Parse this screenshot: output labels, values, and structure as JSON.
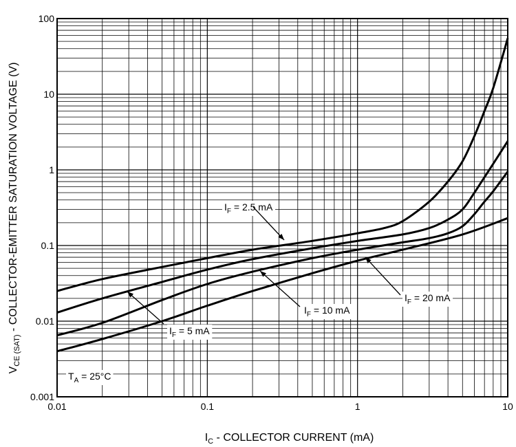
{
  "chart_data": {
    "type": "line",
    "title": "",
    "x_scale": "log",
    "y_scale": "log",
    "xlim": [
      0.01,
      10
    ],
    "ylim": [
      0.001,
      100
    ],
    "grid": true,
    "x_ticks": [
      "0.01",
      "0.1",
      "1",
      "10"
    ],
    "y_ticks": [
      "0.001",
      "0.01",
      "0.1",
      "1",
      "10",
      "100"
    ],
    "xlabel": {
      "main": "I",
      "sub": "C",
      "rest": " - COLLECTOR CURRENT (mA)"
    },
    "ylabel": {
      "main": "V",
      "sub": "CE (SAT)",
      "rest": " - COLLECTOR-EMITTER SATURATION VOLTAGE (V)"
    },
    "annotation": {
      "main": "T",
      "sub": "A",
      "rest": " = 25°C"
    },
    "series": [
      {
        "name": "2.5 mA",
        "label_main": "I",
        "label_sub": "F",
        "label_rest": " = 2.5 mA",
        "x": [
          0.01,
          0.02,
          0.05,
          0.1,
          0.2,
          0.5,
          1,
          1.5,
          2,
          3,
          4,
          5,
          6,
          7,
          8,
          10
        ],
        "y": [
          0.025,
          0.036,
          0.052,
          0.068,
          0.088,
          0.115,
          0.145,
          0.17,
          0.21,
          0.38,
          0.7,
          1.3,
          2.8,
          6.0,
          12,
          55
        ]
      },
      {
        "name": "5 mA",
        "label_main": "I",
        "label_sub": "F",
        "label_rest": " = 5 mA",
        "x": [
          0.01,
          0.02,
          0.05,
          0.1,
          0.2,
          0.5,
          1,
          2,
          3,
          4,
          5,
          6,
          7,
          8,
          10
        ],
        "y": [
          0.013,
          0.02,
          0.033,
          0.048,
          0.066,
          0.092,
          0.115,
          0.14,
          0.17,
          0.22,
          0.3,
          0.5,
          0.8,
          1.2,
          2.4
        ]
      },
      {
        "name": "10 mA",
        "label_main": "I",
        "label_sub": "F",
        "label_rest": " = 10 mA",
        "x": [
          0.01,
          0.02,
          0.05,
          0.1,
          0.2,
          0.5,
          1,
          2,
          3,
          4,
          5,
          6,
          7,
          8,
          10
        ],
        "y": [
          0.0065,
          0.0095,
          0.019,
          0.031,
          0.045,
          0.068,
          0.088,
          0.11,
          0.125,
          0.145,
          0.18,
          0.26,
          0.38,
          0.52,
          0.95
        ]
      },
      {
        "name": "20 mA",
        "label_main": "I",
        "label_sub": "F",
        "label_rest": " = 20 mA",
        "x": [
          0.01,
          0.02,
          0.05,
          0.1,
          0.2,
          0.5,
          1,
          2,
          5,
          10
        ],
        "y": [
          0.004,
          0.0058,
          0.01,
          0.016,
          0.025,
          0.043,
          0.063,
          0.088,
          0.14,
          0.23
        ]
      }
    ]
  }
}
